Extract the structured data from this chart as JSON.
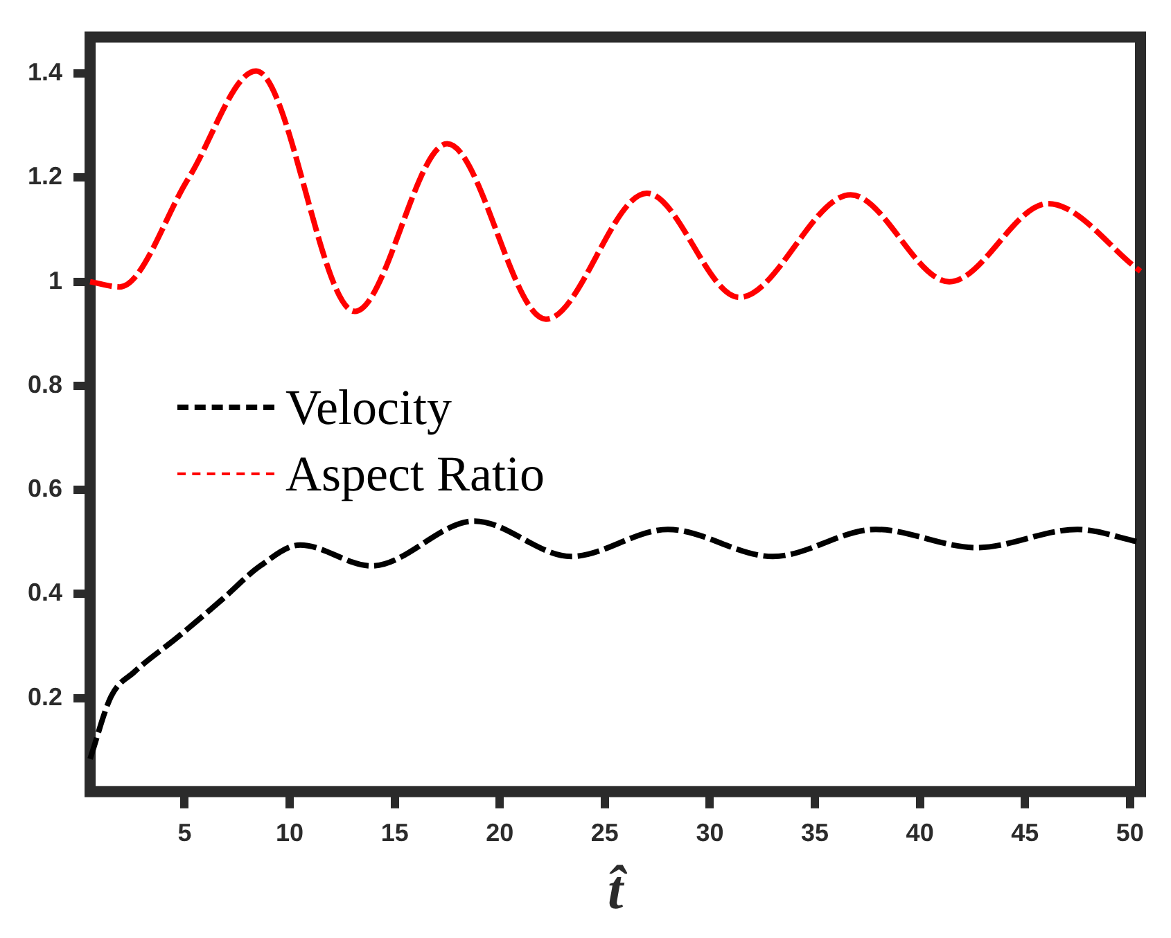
{
  "chart_data": {
    "type": "line",
    "xlabel": "t̂",
    "xlim": [
      0.5,
      50.5
    ],
    "xticks": [
      5,
      10,
      15,
      20,
      25,
      30,
      35,
      40,
      45,
      50
    ],
    "ylim": [
      0.02,
      1.47
    ],
    "yticks": [
      0.2,
      0.4,
      0.6,
      0.8,
      1,
      1.2,
      1.4
    ],
    "grid": false,
    "legend": "left",
    "line_style": "dashed",
    "marker": "none",
    "series": [
      {
        "name": "Velocity",
        "color": "#000000",
        "x": [
          0.5,
          1.5,
          2.6,
          4.7,
          6.8,
          8.6,
          10.5,
          13.9,
          18.8,
          23.4,
          28.0,
          33.0,
          37.9,
          42.7,
          47.5,
          50.4
        ],
        "values": [
          0.083,
          0.203,
          0.25,
          0.318,
          0.39,
          0.454,
          0.494,
          0.454,
          0.54,
          0.472,
          0.524,
          0.472,
          0.524,
          0.489,
          0.524,
          0.5
        ]
      },
      {
        "name": "Aspect Ratio",
        "color": "#ff0000",
        "x": [
          0.5,
          1.9,
          5.2,
          8.4,
          13.1,
          17.5,
          22.2,
          27.0,
          31.4,
          36.7,
          41.4,
          46.1,
          50.5
        ],
        "values": [
          1.0,
          0.99,
          1.2,
          1.405,
          0.943,
          1.265,
          0.928,
          1.17,
          0.97,
          1.167,
          1.0,
          1.15,
          1.02
        ]
      }
    ]
  }
}
